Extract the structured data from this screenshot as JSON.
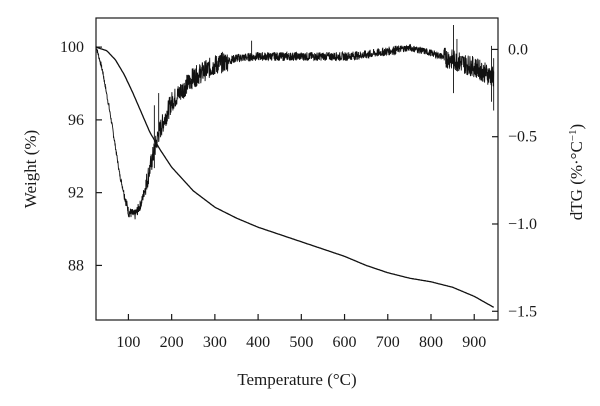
{
  "chart_data": {
    "type": "line",
    "xlabel": "Temperature (°C)",
    "ylabel": "Weight (%)",
    "y2label_main": "dTG (%·°C",
    "y2label_sup": "−1",
    "y2label_close": ")",
    "xlim": [
      25,
      955
    ],
    "ylim": [
      85,
      101.6
    ],
    "y2lim": [
      -1.55,
      0.18
    ],
    "x_ticks": [
      100,
      200,
      300,
      400,
      500,
      600,
      700,
      800,
      900
    ],
    "x_tick_labels": [
      "100",
      "200",
      "300",
      "400",
      "500",
      "600",
      "700",
      "800",
      "900"
    ],
    "y_ticks": [
      88,
      92,
      96,
      100
    ],
    "y_tick_labels": [
      "88",
      "92",
      "96",
      "100"
    ],
    "y2_ticks": [
      0.0,
      -0.5,
      -1.0,
      -1.5
    ],
    "y2_tick_labels": [
      "0.0",
      "−0.5",
      "−1.0",
      "−1.5"
    ],
    "grid": false,
    "series": [
      {
        "axis": "left",
        "color": "#111111",
        "x": [
          25,
          50,
          70,
          90,
          110,
          130,
          150,
          175,
          200,
          250,
          300,
          350,
          400,
          450,
          500,
          550,
          600,
          650,
          700,
          750,
          800,
          850,
          900,
          930,
          945
        ],
        "y": [
          100.0,
          99.8,
          99.3,
          98.5,
          97.5,
          96.4,
          95.3,
          94.3,
          93.4,
          92.1,
          91.2,
          90.6,
          90.1,
          89.7,
          89.3,
          88.9,
          88.5,
          88.0,
          87.6,
          87.3,
          87.1,
          86.8,
          86.3,
          85.9,
          85.7
        ]
      },
      {
        "axis": "right",
        "color": "#111111",
        "x": [
          25,
          40,
          60,
          80,
          100,
          115,
          130,
          150,
          170,
          200,
          250,
          300,
          350,
          400,
          450,
          500,
          550,
          600,
          650,
          700,
          750,
          800,
          850,
          900,
          945
        ],
        "y": [
          0.02,
          -0.12,
          -0.4,
          -0.72,
          -0.93,
          -0.95,
          -0.88,
          -0.68,
          -0.48,
          -0.3,
          -0.16,
          -0.09,
          -0.05,
          -0.04,
          -0.04,
          -0.04,
          -0.04,
          -0.04,
          -0.03,
          -0.01,
          0.01,
          -0.02,
          -0.06,
          -0.1,
          -0.16
        ]
      }
    ]
  }
}
